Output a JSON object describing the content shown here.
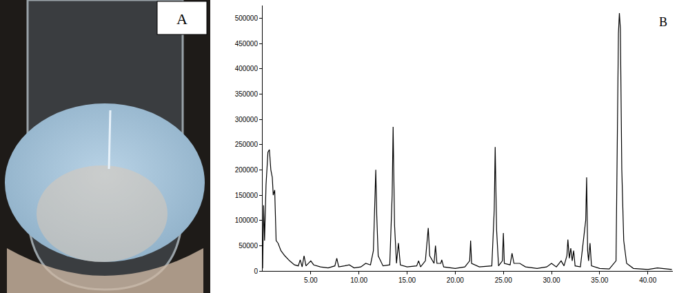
{
  "photo": {
    "label": "A"
  },
  "chart_data": {
    "type": "line",
    "annotations": [
      "B"
    ],
    "color": "#000000",
    "grid": false,
    "x": [
      0,
      0.1,
      0.2,
      0.35,
      0.55,
      0.7,
      0.85,
      1.0,
      1.1,
      1.25,
      1.4,
      1.6,
      1.9,
      2.3,
      2.8,
      3.3,
      3.7,
      3.9,
      4.1,
      4.3,
      4.5,
      5.0,
      5.3,
      6.0,
      6.8,
      7.5,
      7.7,
      7.9,
      8.5,
      9.0,
      9.5,
      10.2,
      10.7,
      11.2,
      11.5,
      11.65,
      11.75,
      11.85,
      12.0,
      12.5,
      13.2,
      13.45,
      13.55,
      13.7,
      13.9,
      14.1,
      14.3,
      15.0,
      16.0,
      16.2,
      16.4,
      16.9,
      17.1,
      17.2,
      17.35,
      17.8,
      17.95,
      18.1,
      18.5,
      18.6,
      18.8,
      20.0,
      21.0,
      21.5,
      21.6,
      21.7,
      22.5,
      23.8,
      24.05,
      24.15,
      24.3,
      24.5,
      24.9,
      25.0,
      25.1,
      25.7,
      25.9,
      26.1,
      26.7,
      27.3,
      28.5,
      29.5,
      30.0,
      30.5,
      31.0,
      31.3,
      31.6,
      31.7,
      31.85,
      32.0,
      32.15,
      32.3,
      32.45,
      33.0,
      33.55,
      33.65,
      33.75,
      33.85,
      34.0,
      34.15,
      35.0,
      36.0,
      36.7,
      36.85,
      36.95,
      37.05,
      37.15,
      37.3,
      37.5,
      37.8,
      38.5,
      40.0,
      41.0,
      42.0,
      42.5
    ],
    "values": [
      5000,
      130000,
      60000,
      170000,
      235000,
      240000,
      200000,
      185000,
      150000,
      160000,
      60000,
      55000,
      40000,
      30000,
      20000,
      12000,
      10000,
      22000,
      8000,
      30000,
      10000,
      20000,
      12000,
      8000,
      6000,
      10000,
      25000,
      8000,
      10000,
      12000,
      6000,
      8000,
      15000,
      12000,
      40000,
      120000,
      200000,
      110000,
      30000,
      10000,
      12000,
      150000,
      285000,
      90000,
      15000,
      55000,
      12000,
      8000,
      10000,
      20000,
      8000,
      20000,
      70000,
      85000,
      30000,
      15000,
      50000,
      15000,
      15000,
      22000,
      8000,
      5000,
      8000,
      20000,
      60000,
      15000,
      8000,
      10000,
      120000,
      245000,
      80000,
      10000,
      20000,
      75000,
      15000,
      12000,
      35000,
      15000,
      15000,
      8000,
      5000,
      8000,
      15000,
      8000,
      20000,
      10000,
      30000,
      62000,
      25000,
      45000,
      20000,
      40000,
      10000,
      8000,
      100000,
      185000,
      40000,
      20000,
      55000,
      10000,
      5000,
      4000,
      20000,
      250000,
      470000,
      510000,
      480000,
      200000,
      60000,
      15000,
      5000,
      3000,
      6000,
      4000,
      3000
    ],
    "xlim": [
      0,
      42.6
    ],
    "xticks": [
      {
        "value": 5,
        "label": "5.00"
      },
      {
        "value": 10,
        "label": "10.00"
      },
      {
        "value": 15,
        "label": "15.00"
      },
      {
        "value": 20,
        "label": "20.00"
      },
      {
        "value": 25,
        "label": "25.00"
      },
      {
        "value": 30,
        "label": "30.00"
      },
      {
        "value": 35,
        "label": "35.00"
      },
      {
        "value": 40,
        "label": "40.00"
      }
    ],
    "ylim": [
      0,
      525000
    ],
    "yticks": [
      0,
      50000,
      100000,
      150000,
      200000,
      250000,
      300000,
      350000,
      400000,
      450000,
      500000
    ],
    "tick_labels": true
  }
}
